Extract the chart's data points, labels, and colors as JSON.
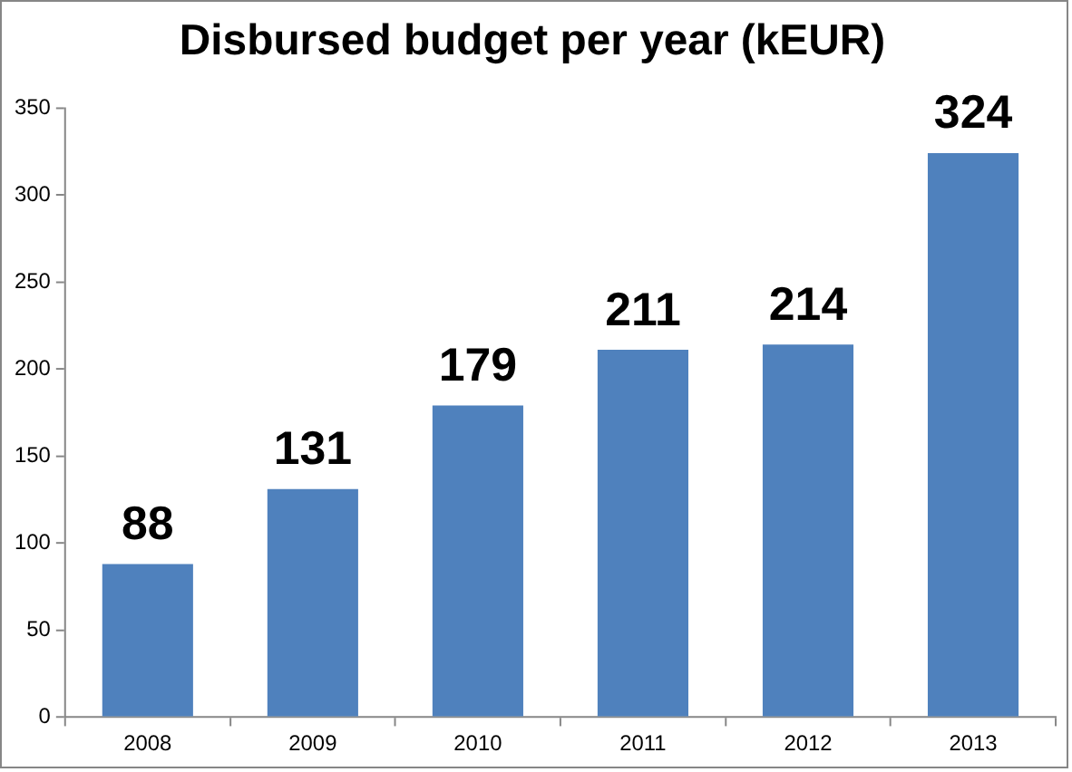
{
  "chart_data": {
    "type": "bar",
    "title": "Disbursed budget per year (kEUR)",
    "categories": [
      "2008",
      "2009",
      "2010",
      "2011",
      "2012",
      "2013"
    ],
    "values": [
      88,
      131,
      179,
      211,
      214,
      324
    ],
    "color": "#4f81bd",
    "ylim": [
      0,
      350
    ],
    "yticks": [
      0,
      50,
      100,
      150,
      200,
      250,
      300,
      350
    ],
    "data_labels": true
  }
}
